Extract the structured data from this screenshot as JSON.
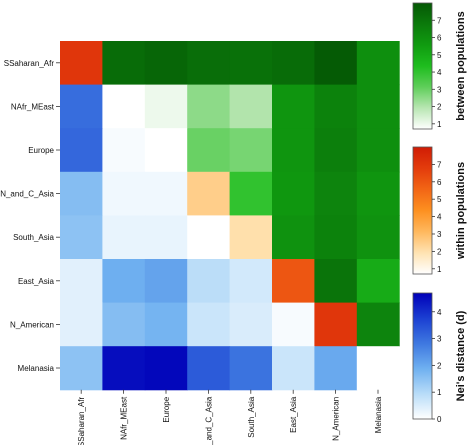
{
  "chart_data": {
    "type": "heatmap",
    "rows": [
      "SSaharan_Afr",
      "NAfr_MEast",
      "Europe",
      "N_and_C_Asia",
      "South_Asia",
      "East_Asia",
      "N_American",
      "Melanasia"
    ],
    "columns": [
      "SSaharan_Afr",
      "NAfr_MEast",
      "Europe",
      "N_and_C_Asia",
      "South_Asia",
      "East_Asia",
      "N_American",
      "Melanasia"
    ],
    "cells": [
      [
        {
          "s": "w",
          "v": 7
        },
        {
          "s": "b",
          "v": 7.3
        },
        {
          "s": "b",
          "v": 7.5
        },
        {
          "s": "b",
          "v": 7.2
        },
        {
          "s": "b",
          "v": 7.1
        },
        {
          "s": "b",
          "v": 7.3
        },
        {
          "s": "b",
          "v": 7.9
        },
        {
          "s": "b",
          "v": 6.0
        }
      ],
      [
        {
          "s": "d",
          "v": 3.0
        },
        {
          "s": "w",
          "v": 0.2
        },
        {
          "s": "b",
          "v": 1.0
        },
        {
          "s": "b",
          "v": 2.5
        },
        {
          "s": "b",
          "v": 2.0
        },
        {
          "s": "b",
          "v": 5.8
        },
        {
          "s": "b",
          "v": 6.5
        },
        {
          "s": "b",
          "v": 6.0
        }
      ],
      [
        {
          "s": "d",
          "v": 3.1
        },
        {
          "s": "d",
          "v": 0.1
        },
        {
          "s": "w",
          "v": 0.7
        },
        {
          "s": "b",
          "v": 3.0
        },
        {
          "s": "b",
          "v": 2.8
        },
        {
          "s": "b",
          "v": 5.8
        },
        {
          "s": "b",
          "v": 6.6
        },
        {
          "s": "b",
          "v": 6.0
        }
      ],
      [
        {
          "s": "d",
          "v": 1.6
        },
        {
          "s": "d",
          "v": 0.2
        },
        {
          "s": "d",
          "v": 0.2
        },
        {
          "s": "w",
          "v": 2.5
        },
        {
          "s": "b",
          "v": 4.0
        },
        {
          "s": "b",
          "v": 5.7
        },
        {
          "s": "b",
          "v": 6.4
        },
        {
          "s": "b",
          "v": 5.8
        }
      ],
      [
        {
          "s": "d",
          "v": 1.5
        },
        {
          "s": "d",
          "v": 0.3
        },
        {
          "s": "d",
          "v": 0.3
        },
        {
          "s": "d",
          "v": 0
        },
        {
          "s": "w",
          "v": 2.0
        },
        {
          "s": "b",
          "v": 5.9
        },
        {
          "s": "b",
          "v": 6.5
        },
        {
          "s": "b",
          "v": 5.9
        }
      ],
      [
        {
          "s": "d",
          "v": 0.4
        },
        {
          "s": "d",
          "v": 1.9
        },
        {
          "s": "d",
          "v": 2.1
        },
        {
          "s": "d",
          "v": 0.9
        },
        {
          "s": "d",
          "v": 0.6
        },
        {
          "s": "w",
          "v": 6.0
        },
        {
          "s": "b",
          "v": 7.0
        },
        {
          "s": "b",
          "v": 5.0
        }
      ],
      [
        {
          "s": "d",
          "v": 0.4
        },
        {
          "s": "d",
          "v": 1.6
        },
        {
          "s": "d",
          "v": 1.8
        },
        {
          "s": "d",
          "v": 0.7
        },
        {
          "s": "d",
          "v": 0.5
        },
        {
          "s": "d",
          "v": 0.1
        },
        {
          "s": "w",
          "v": 7.0
        },
        {
          "s": "b",
          "v": 6.4
        }
      ],
      [
        {
          "s": "d",
          "v": 1.5
        },
        {
          "s": "d",
          "v": 4.5
        },
        {
          "s": "d",
          "v": 4.6
        },
        {
          "s": "d",
          "v": 3.3
        },
        {
          "s": "d",
          "v": 2.9
        },
        {
          "s": "d",
          "v": 0.7
        },
        {
          "s": "d",
          "v": 2.0
        },
        {
          "s": "w",
          "v": 0
        }
      ]
    ],
    "legends": [
      {
        "key": "b",
        "title": "between populations",
        "ticks": [
          "1",
          "2",
          "3",
          "4",
          "5",
          "6",
          "7"
        ],
        "range": [
          0.7,
          8
        ],
        "colors": [
          "#ffffff",
          "#b8e6b2",
          "#5fce5a",
          "#1ebd1e",
          "#109b10",
          "#0b7a0b",
          "#055805"
        ]
      },
      {
        "key": "w",
        "title": "within populations",
        "ticks": [
          "1",
          "2",
          "3",
          "4",
          "5",
          "6",
          "7"
        ],
        "range": [
          0.7,
          8
        ],
        "colors": [
          "#ffffff",
          "#ffe3b2",
          "#ffb85e",
          "#fd9020",
          "#f26515",
          "#e33c0c",
          "#d01c05"
        ]
      },
      {
        "key": "d",
        "title": "Nei's distance (d)",
        "ticks": [
          "0",
          "1",
          "2",
          "3",
          "4"
        ],
        "range": [
          0,
          4.7
        ],
        "colors": [
          "#ffffff",
          "#b8dcf8",
          "#6fb0f0",
          "#3e78e0",
          "#1b3fd2",
          "#0000b8"
        ]
      }
    ]
  }
}
